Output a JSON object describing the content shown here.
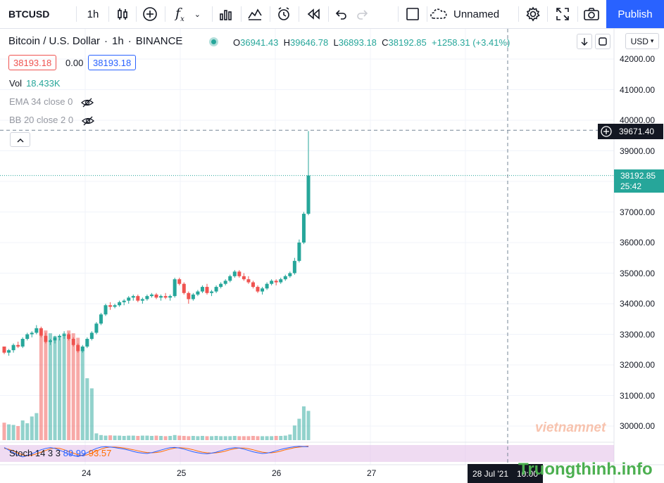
{
  "toolbar": {
    "symbol": "BTCUSD",
    "interval": "1h",
    "layout_name": "Unnamed",
    "publish_label": "Publish",
    "fx_label": "f",
    "fx_sub": "x"
  },
  "legend": {
    "name": "Bitcoin / U.S. Dollar",
    "interval": "1h",
    "exchange": "BINANCE",
    "sep": "·",
    "open_label": "O",
    "open": "36941.43",
    "high_label": "H",
    "high": "39646.78",
    "low_label": "L",
    "low": "36893.18",
    "close_label": "C",
    "close": "38192.85",
    "change": "+1258.31 (+3.41%)",
    "bid": "38193.18",
    "spread": "0.00",
    "ask": "38193.18"
  },
  "indicators": {
    "vol_label": "Vol",
    "vol_value": "18.433K",
    "ema": "EMA 34 close 0",
    "bb": "BB 20 close 2 0",
    "stoch_label": "Stoch 14 3 3",
    "stoch_k": "89.99",
    "stoch_d": "93.57"
  },
  "price_axis": {
    "currency": "USD",
    "ticks": [
      "42000.00",
      "41000.00",
      "40000.00",
      "39000.00",
      "38000.00",
      "37000.00",
      "36000.00",
      "35000.00",
      "34000.00",
      "33000.00",
      "32000.00",
      "31000.00",
      "30000.00"
    ],
    "crosshair_price": "39671.40",
    "last_price": "38192.85",
    "countdown": "25:42"
  },
  "time_axis": {
    "ticks": [
      "24",
      "25",
      "26",
      "27"
    ],
    "crosshair_date": "28 Jul '21",
    "crosshair_time": "10:00"
  },
  "watermark": {
    "left": "vietnamnet",
    "right": "Truongthinh.info"
  },
  "colors": {
    "up": "#26a69a",
    "down": "#ef5350",
    "accent": "#2962ff",
    "stoch_band": "#e1bee7"
  },
  "chart_data": {
    "type": "candlestick",
    "symbol": "BTCUSD",
    "interval": "1h",
    "ylim": [
      29500,
      42500
    ],
    "candles": [
      [
        32600,
        32550,
        32350,
        32400
      ],
      [
        32400,
        32520,
        32300,
        32480
      ],
      [
        32480,
        32700,
        32400,
        32650
      ],
      [
        32650,
        32760,
        32550,
        32600
      ],
      [
        32600,
        32900,
        32550,
        32850
      ],
      [
        32850,
        33050,
        32800,
        33000
      ],
      [
        33000,
        33100,
        32900,
        33050
      ],
      [
        33050,
        33300,
        33000,
        33200
      ],
      [
        33200,
        33250,
        32900,
        32950
      ],
      [
        32950,
        33050,
        32700,
        32750
      ],
      [
        32750,
        32850,
        32650,
        32800
      ],
      [
        32800,
        32950,
        32700,
        32900
      ],
      [
        32900,
        33000,
        32800,
        32950
      ],
      [
        32950,
        33100,
        32850,
        33000
      ],
      [
        33000,
        33050,
        32800,
        32850
      ],
      [
        32850,
        32900,
        32600,
        32650
      ],
      [
        32650,
        32700,
        32400,
        32450
      ],
      [
        32450,
        32650,
        32400,
        32600
      ],
      [
        32600,
        32900,
        32550,
        32850
      ],
      [
        32850,
        33100,
        32800,
        33050
      ],
      [
        33050,
        33400,
        33000,
        33350
      ],
      [
        33350,
        33700,
        33300,
        33650
      ],
      [
        33650,
        34000,
        33600,
        33950
      ],
      [
        33950,
        34050,
        33800,
        33900
      ],
      [
        33900,
        34000,
        33850,
        33950
      ],
      [
        33950,
        34100,
        33900,
        34050
      ],
      [
        34050,
        34150,
        33950,
        34100
      ],
      [
        34100,
        34250,
        34000,
        34200
      ],
      [
        34200,
        34300,
        34100,
        34250
      ],
      [
        34250,
        34300,
        34050,
        34100
      ],
      [
        34100,
        34200,
        34000,
        34150
      ],
      [
        34150,
        34300,
        34100,
        34250
      ],
      [
        34250,
        34350,
        34200,
        34300
      ],
      [
        34300,
        34350,
        34150,
        34200
      ],
      [
        34200,
        34300,
        34100,
        34250
      ],
      [
        34250,
        34350,
        34150,
        34200
      ],
      [
        34200,
        34300,
        34100,
        34250
      ],
      [
        34250,
        34850,
        34200,
        34800
      ],
      [
        34800,
        34850,
        34600,
        34650
      ],
      [
        34650,
        34700,
        34300,
        34350
      ],
      [
        34350,
        34400,
        34000,
        34150
      ],
      [
        34150,
        34350,
        34100,
        34300
      ],
      [
        34300,
        34450,
        34250,
        34400
      ],
      [
        34400,
        34600,
        34350,
        34550
      ],
      [
        34550,
        34650,
        34300,
        34350
      ],
      [
        34350,
        34450,
        34250,
        34400
      ],
      [
        34400,
        34600,
        34350,
        34550
      ],
      [
        34550,
        34700,
        34500,
        34650
      ],
      [
        34650,
        34800,
        34600,
        34750
      ],
      [
        34750,
        34950,
        34700,
        34900
      ],
      [
        34900,
        35100,
        34850,
        35050
      ],
      [
        35050,
        35100,
        34850,
        34900
      ],
      [
        34900,
        35000,
        34750,
        34800
      ],
      [
        34800,
        34900,
        34650,
        34700
      ],
      [
        34700,
        34750,
        34500,
        34550
      ],
      [
        34550,
        34600,
        34350,
        34400
      ],
      [
        34400,
        34550,
        34300,
        34500
      ],
      [
        34500,
        34700,
        34450,
        34650
      ],
      [
        34650,
        34800,
        34600,
        34750
      ],
      [
        34750,
        34800,
        34600,
        34700
      ],
      [
        34700,
        34850,
        34650,
        34800
      ],
      [
        34800,
        34950,
        34750,
        34900
      ],
      [
        34900,
        35050,
        34850,
        35000
      ],
      [
        35000,
        35500,
        34950,
        35400
      ],
      [
        35400,
        36100,
        35350,
        36000
      ],
      [
        36000,
        37000,
        35950,
        36941
      ],
      [
        36941,
        39647,
        36893,
        38193
      ]
    ],
    "volume_ylim": [
      0,
      2200
    ],
    "volume": [
      310,
      280,
      270,
      250,
      350,
      300,
      420,
      480,
      1850,
      1950,
      1900,
      1850,
      1820,
      1900,
      1950,
      1900,
      1820,
      1600,
      1100,
      920,
      120,
      90,
      80,
      85,
      80,
      80,
      75,
      80,
      80,
      75,
      80,
      80,
      75,
      80,
      75,
      70,
      75,
      90,
      80,
      75,
      70,
      75,
      70,
      75,
      70,
      70,
      75,
      70,
      70,
      70,
      75,
      70,
      70,
      70,
      75,
      70,
      70,
      70,
      70,
      75,
      75,
      80,
      100,
      260,
      380,
      600,
      520
    ],
    "stoch_ylim": [
      0,
      100
    ],
    "stoch_k": [
      85,
      70,
      55,
      40,
      30,
      38,
      48,
      60,
      72,
      80,
      85,
      80,
      70,
      58,
      46,
      38,
      32,
      40,
      55,
      68,
      80,
      88,
      90,
      88,
      85,
      80,
      76,
      70,
      62,
      56,
      52,
      50,
      55,
      62,
      70,
      78,
      84,
      86,
      82,
      76,
      68,
      60,
      54,
      50,
      48,
      52,
      58,
      66,
      74,
      80,
      84,
      82,
      76,
      68,
      60,
      54,
      50,
      52,
      58,
      66,
      74,
      80,
      86,
      90,
      92,
      91,
      90
    ],
    "stoch_d": [
      80,
      75,
      65,
      52,
      42,
      36,
      40,
      48,
      58,
      68,
      78,
      82,
      80,
      72,
      62,
      52,
      42,
      38,
      42,
      52,
      64,
      76,
      84,
      88,
      88,
      86,
      82,
      77,
      72,
      66,
      60,
      56,
      54,
      56,
      60,
      68,
      76,
      82,
      84,
      82,
      78,
      72,
      64,
      58,
      54,
      52,
      54,
      58,
      64,
      72,
      78,
      82,
      82,
      78,
      72,
      64,
      58,
      54,
      54,
      58,
      64,
      72,
      78,
      84,
      88,
      91,
      93.57
    ]
  }
}
